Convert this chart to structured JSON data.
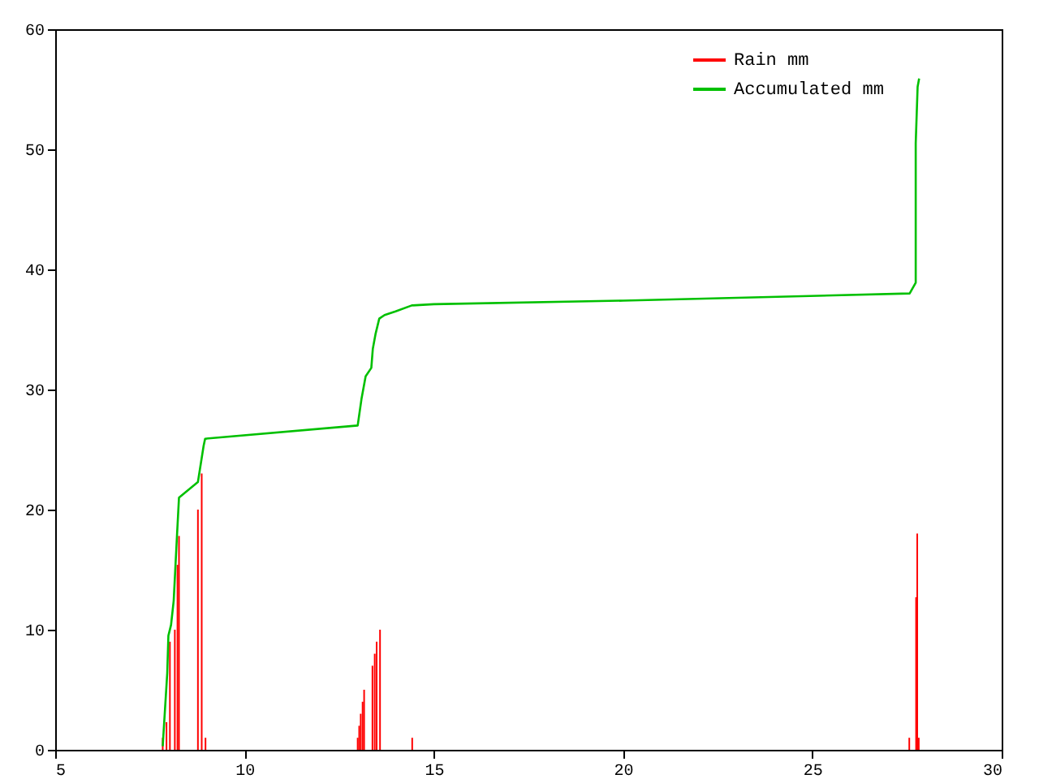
{
  "chart_data": {
    "type": "line",
    "xlim": [
      5,
      30
    ],
    "xticks": [
      5,
      10,
      15,
      20,
      25,
      30
    ],
    "ylim": [
      0,
      60
    ],
    "yticks": [
      0,
      10,
      20,
      30,
      40,
      50,
      60
    ],
    "grid": false,
    "legend": "top right",
    "series": [
      {
        "name": "Rain mm",
        "type": "bar",
        "color": "#ff0000",
        "x": [
          7.84,
          7.94,
          8.03,
          8.16,
          8.23,
          8.27,
          8.77,
          8.87,
          8.97,
          12.99,
          13.03,
          13.07,
          13.12,
          13.16,
          13.38,
          13.44,
          13.49,
          13.58,
          14.43,
          27.56,
          27.74,
          27.77,
          27.81
        ],
        "values": [
          1,
          2.3,
          9,
          10,
          15.4,
          17.8,
          20,
          23,
          1,
          1,
          2,
          3,
          4,
          5,
          7,
          8,
          9,
          10,
          1,
          1,
          12.7,
          18,
          1
        ]
      },
      {
        "name": "Accumulated mm",
        "color": "#00c000",
        "x": [
          7.84,
          7.96,
          7.99,
          8.06,
          8.13,
          8.17,
          8.22,
          8.27,
          8.77,
          8.92,
          8.96,
          12.99,
          13.09,
          13.2,
          13.35,
          13.39,
          13.46,
          13.56,
          13.7,
          13.99,
          14.42,
          15,
          20,
          27.57,
          27.73,
          27.73,
          27.78,
          27.82
        ],
        "values": [
          0.3,
          6.4,
          9.5,
          10.4,
          12.4,
          14.9,
          18,
          21,
          22.3,
          25.3,
          25.9,
          27,
          29.2,
          31.1,
          31.8,
          33.4,
          34.6,
          35.9,
          36.2,
          36.5,
          37,
          37.1,
          37.4,
          38,
          38.9,
          50.5,
          55.2,
          55.9
        ]
      }
    ]
  }
}
